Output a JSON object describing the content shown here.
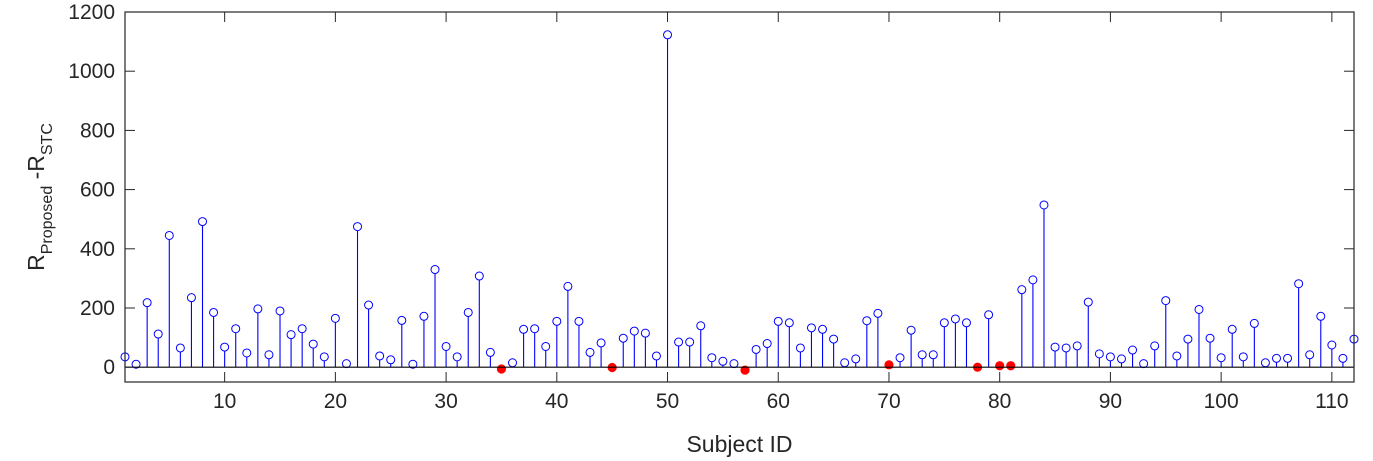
{
  "chart_data": {
    "type": "stem",
    "xlabel": "Subject ID",
    "ylabel": {
      "main_1": "R",
      "sub_1": "Proposed",
      "main_2": " -R",
      "sub_2": "STC"
    },
    "xlim": [
      1,
      112
    ],
    "ylim": [
      -50,
      1200
    ],
    "xticks": [
      10,
      20,
      30,
      40,
      50,
      60,
      70,
      80,
      90,
      100,
      110
    ],
    "yticks": [
      0,
      200,
      400,
      600,
      800,
      1000,
      1200
    ],
    "grid": false,
    "stem_color": "#0000ff",
    "negative_marker_color": "#ff0000",
    "x": [
      1,
      2,
      3,
      4,
      5,
      6,
      7,
      8,
      9,
      10,
      11,
      12,
      13,
      14,
      15,
      16,
      17,
      18,
      19,
      20,
      21,
      22,
      23,
      24,
      25,
      26,
      27,
      28,
      29,
      30,
      31,
      32,
      33,
      34,
      35,
      36,
      37,
      38,
      39,
      40,
      41,
      42,
      43,
      44,
      45,
      46,
      47,
      48,
      49,
      50,
      51,
      52,
      53,
      54,
      55,
      56,
      57,
      58,
      59,
      60,
      61,
      62,
      63,
      64,
      65,
      66,
      67,
      68,
      69,
      70,
      71,
      72,
      73,
      74,
      75,
      76,
      77,
      78,
      79,
      80,
      81,
      82,
      83,
      84,
      85,
      86,
      87,
      88,
      89,
      90,
      91,
      92,
      93,
      94,
      95,
      96,
      97,
      98,
      99,
      100,
      101,
      102,
      103,
      104,
      105,
      106,
      107,
      108,
      109,
      110,
      111,
      112
    ],
    "values": [
      35,
      10,
      218,
      112,
      445,
      65,
      235,
      492,
      185,
      68,
      130,
      48,
      197,
      42,
      190,
      110,
      130,
      78,
      35,
      165,
      12,
      475,
      210,
      38,
      25,
      158,
      10,
      172,
      330,
      70,
      35,
      185,
      308,
      50,
      -6,
      15,
      128,
      130,
      70,
      155,
      273,
      155,
      50,
      82,
      -1,
      98,
      122,
      115,
      38,
      1123,
      85,
      85,
      140,
      32,
      20,
      12,
      -10,
      60,
      80,
      155,
      150,
      65,
      133,
      128,
      95,
      15,
      28,
      157,
      182,
      8,
      32,
      125,
      42,
      42,
      150,
      163,
      150,
      0,
      177,
      5,
      5,
      262,
      295,
      548,
      68,
      65,
      72,
      220,
      45,
      35,
      28,
      58,
      12,
      72,
      225,
      38,
      95,
      195,
      98,
      32,
      128,
      35,
      148,
      15,
      30,
      30,
      282,
      42,
      172,
      75,
      30,
      95
    ]
  }
}
